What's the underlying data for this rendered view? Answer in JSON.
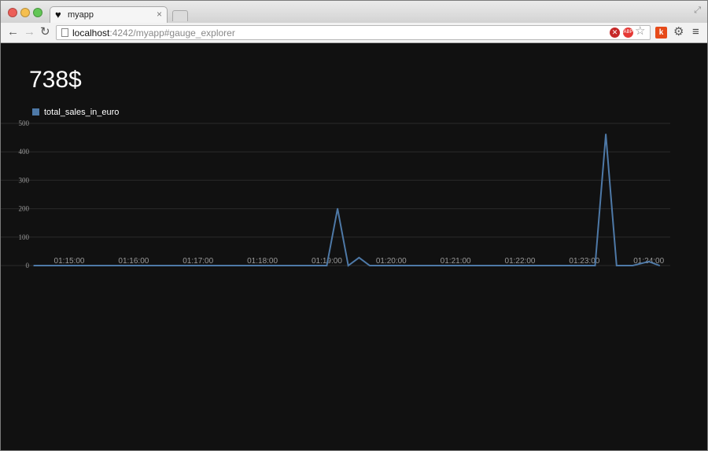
{
  "browser": {
    "tab_title": "myapp",
    "url_host": "localhost",
    "url_path": ":4242/myapp#gauge_explorer",
    "extension_k_label": "k",
    "extension_abp_label": "ABP"
  },
  "dashboard": {
    "big_value": "738$",
    "legend_label": "total_sales_in_euro"
  },
  "chart_data": {
    "type": "line",
    "series": [
      {
        "name": "total_sales_in_euro",
        "color": "#4e79a7",
        "points": [
          [
            "01:14:27",
            0
          ],
          [
            "01:19:00",
            0
          ],
          [
            "01:19:10",
            200
          ],
          [
            "01:19:20",
            0
          ],
          [
            "01:19:30",
            28
          ],
          [
            "01:19:40",
            0
          ],
          [
            "01:23:10",
            0
          ],
          [
            "01:23:20",
            462
          ],
          [
            "01:23:30",
            0
          ],
          [
            "01:23:45",
            0
          ],
          [
            "01:24:00",
            14
          ],
          [
            "01:24:10",
            0
          ]
        ]
      }
    ],
    "x_ticks": [
      "01:15:00",
      "01:16:00",
      "01:17:00",
      "01:18:00",
      "01:19:00",
      "01:20:00",
      "01:21:00",
      "01:22:00",
      "01:23:00",
      "01:24:00"
    ],
    "y_ticks": [
      "0",
      "100",
      "200",
      "300",
      "400",
      "500"
    ],
    "xlim": [
      "01:14:27",
      "01:24:20"
    ],
    "ylim": [
      0,
      500
    ],
    "grid": true,
    "legend": "top-left"
  }
}
